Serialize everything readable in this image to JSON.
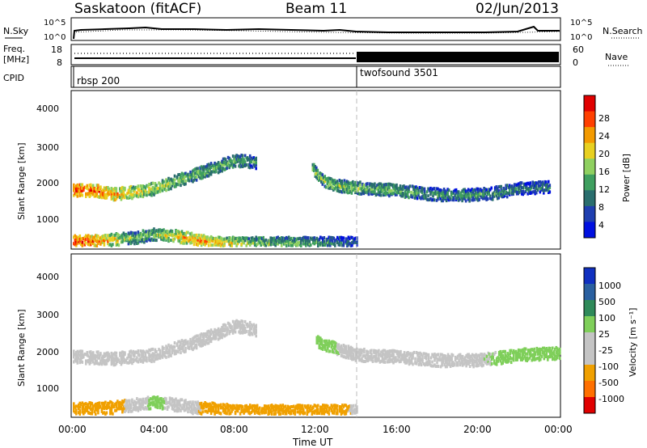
{
  "header": {
    "station": "Saskatoon (fitACF)",
    "beam": "Beam 11",
    "date": "02/Jun/2013"
  },
  "noise_panel": {
    "left_label": "N.Sky",
    "right_label": "N.Search",
    "ticks": [
      "10^5",
      "10^0"
    ],
    "right_ticks": [
      "10^5",
      "10^0"
    ]
  },
  "freq_panel": {
    "left_label": "Freq.",
    "left_unit": "[MHz]",
    "left_ticks": [
      "18",
      "8"
    ],
    "right_label": "Nave",
    "right_ticks": [
      "60",
      "0"
    ]
  },
  "cpid_panel": {
    "label": "CPID",
    "programs": [
      {
        "name": "rbsp 200",
        "start_hour": 0
      },
      {
        "name": "twofsound 3501",
        "start_hour": 14
      }
    ]
  },
  "x_axis": {
    "label": "Time UT",
    "ticks": [
      "00:00",
      "04:00",
      "08:00",
      "12:00",
      "16:00",
      "20:00",
      "00:00"
    ]
  },
  "chart_data": [
    {
      "type": "heatmap",
      "quantity": "power",
      "xlabel": "Time UT",
      "ylabel": "Slant Range [km]",
      "xlim": [
        0,
        24
      ],
      "ylim": [
        180,
        4600
      ],
      "yticks": [
        "1000",
        "2000",
        "3000",
        "4000"
      ],
      "colorbar": {
        "label": "Power [dB]",
        "ticks": [
          "28",
          "24",
          "20",
          "16",
          "12",
          "8",
          "4"
        ],
        "range": [
          0,
          32
        ],
        "colors": [
          "#0010e0",
          "#1f3fb0",
          "#2a6e6e",
          "#3f9f5f",
          "#8fd060",
          "#e8d020",
          "#f39a00",
          "#ff4000",
          "#e00000"
        ]
      },
      "series": [
        {
          "hours": [
            0,
            1,
            2,
            3,
            4,
            5,
            6,
            7,
            8,
            9
          ],
          "range_km": [
            1800,
            1800,
            1700,
            1750,
            1850,
            2050,
            2250,
            2450,
            2650,
            2600
          ],
          "power_db": [
            28,
            26,
            24,
            20,
            18,
            16,
            16,
            14,
            14,
            12
          ]
        },
        {
          "hours": [
            11.8,
            12.5,
            13.5,
            14.5,
            16,
            17.5,
            19,
            20.5,
            22,
            23.5
          ],
          "range_km": [
            2400,
            2000,
            1900,
            1850,
            1800,
            1700,
            1650,
            1700,
            1850,
            1900
          ],
          "power_db": [
            14,
            16,
            16,
            14,
            14,
            12,
            12,
            12,
            10,
            10
          ]
        },
        {
          "hours": [
            0,
            1,
            2,
            3,
            4,
            5,
            6,
            7,
            8,
            9,
            10,
            11,
            12,
            13,
            14
          ],
          "range_km": [
            350,
            350,
            400,
            450,
            550,
            500,
            400,
            300,
            300,
            300,
            300,
            300,
            300,
            300,
            300
          ],
          "power_db": [
            28,
            26,
            20,
            14,
            16,
            20,
            24,
            22,
            18,
            16,
            14,
            14,
            12,
            10,
            8
          ]
        }
      ]
    },
    {
      "type": "heatmap",
      "quantity": "velocity",
      "xlabel": "Time UT",
      "ylabel": "Slant Range [km]",
      "xlim": [
        0,
        24
      ],
      "ylim": [
        180,
        4600
      ],
      "yticks": [
        "1000",
        "2000",
        "3000",
        "4000"
      ],
      "colorbar": {
        "label": "Velocity [m s⁻¹]",
        "ticks": [
          "1000",
          "500",
          "100",
          "25",
          "-25",
          "-100",
          "-500",
          "-1000"
        ],
        "colors": [
          "#1030c0",
          "#2a60a0",
          "#2f8a5a",
          "#7fcf5a",
          "#c4c4c4",
          "#c4c4c4",
          "#f0a000",
          "#ff7000",
          "#e00000"
        ]
      },
      "series": [
        {
          "hours": [
            0,
            2,
            4,
            6,
            8,
            9
          ],
          "range_km": [
            1800,
            1750,
            1850,
            2200,
            2650,
            2550
          ],
          "velocity_ms": [
            0,
            0,
            5,
            0,
            -5,
            0
          ]
        },
        {
          "hours": [
            12,
            14,
            16,
            18,
            20,
            22,
            24
          ],
          "range_km": [
            2200,
            1850,
            1800,
            1700,
            1700,
            1850,
            1900
          ],
          "velocity_ms": [
            50,
            0,
            0,
            0,
            20,
            40,
            30
          ]
        },
        {
          "hours": [
            0,
            2,
            4,
            6,
            8,
            10,
            12,
            14
          ],
          "range_km": [
            350,
            400,
            550,
            400,
            300,
            300,
            300,
            300
          ],
          "velocity_ms": [
            -200,
            -100,
            50,
            -50,
            -150,
            -150,
            -100,
            -50
          ]
        }
      ]
    }
  ]
}
